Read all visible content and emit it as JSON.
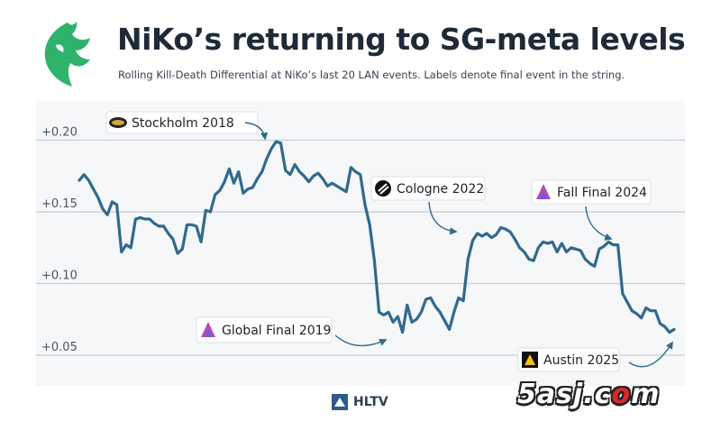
{
  "header": {
    "title": "NiKo’s returning to SG-meta levels",
    "subtitle": "Rolling Kill-Death Differential at NiKo’s last 20 LAN events. Labels denote final event in the string."
  },
  "footer": {
    "brand": "HLTV"
  },
  "watermark": {
    "text_part1": "5asj.c",
    "text_part2": "o",
    "text_part3": "m"
  },
  "colors": {
    "line": "#2f6a8f",
    "grid": "#c9cdd2",
    "title": "#1e2a38",
    "logo": "#2fb36a"
  },
  "chart_data": {
    "type": "line",
    "title": "NiKo’s returning to SG-meta levels",
    "xlabel": "",
    "ylabel": "",
    "ylim": [
      0.03,
      0.22
    ],
    "yticks": [
      0.05,
      0.1,
      0.15,
      0.2
    ],
    "ytick_labels": [
      "+0.05",
      "+0.10",
      "+0.15",
      "+0.20"
    ],
    "grid": true,
    "series": [
      {
        "name": "Rolling K-D Differential",
        "values": [
          0.172,
          0.176,
          0.172,
          0.166,
          0.16,
          0.152,
          0.148,
          0.157,
          0.155,
          0.122,
          0.127,
          0.125,
          0.145,
          0.146,
          0.145,
          0.145,
          0.142,
          0.14,
          0.14,
          0.135,
          0.131,
          0.121,
          0.124,
          0.141,
          0.141,
          0.14,
          0.129,
          0.151,
          0.15,
          0.162,
          0.165,
          0.171,
          0.18,
          0.17,
          0.178,
          0.163,
          0.166,
          0.167,
          0.173,
          0.178,
          0.187,
          0.194,
          0.199,
          0.198,
          0.179,
          0.176,
          0.183,
          0.178,
          0.175,
          0.171,
          0.175,
          0.177,
          0.173,
          0.168,
          0.17,
          0.168,
          0.166,
          0.164,
          0.181,
          0.178,
          0.176,
          0.155,
          0.141,
          0.116,
          0.08,
          0.078,
          0.08,
          0.073,
          0.077,
          0.066,
          0.085,
          0.073,
          0.075,
          0.08,
          0.089,
          0.09,
          0.084,
          0.08,
          0.074,
          0.068,
          0.08,
          0.09,
          0.088,
          0.117,
          0.13,
          0.135,
          0.133,
          0.135,
          0.132,
          0.134,
          0.139,
          0.138,
          0.136,
          0.131,
          0.125,
          0.122,
          0.117,
          0.116,
          0.125,
          0.129,
          0.128,
          0.129,
          0.122,
          0.128,
          0.122,
          0.125,
          0.124,
          0.123,
          0.117,
          0.114,
          0.112,
          0.124,
          0.126,
          0.129,
          0.127,
          0.127,
          0.093,
          0.087,
          0.081,
          0.079,
          0.076,
          0.083,
          0.081,
          0.081,
          0.072,
          0.07,
          0.066,
          0.068
        ]
      }
    ],
    "annotations": [
      {
        "label": "Stockholm 2018",
        "icon": "major-trophy-icon",
        "value": 0.199
      },
      {
        "label": "Global Final 2019",
        "icon": "blast-icon",
        "value": 0.066
      },
      {
        "label": "Cologne 2022",
        "icon": "esl-icon",
        "value": 0.133
      },
      {
        "label": "Fall Final 2024",
        "icon": "blast-icon",
        "value": 0.127
      },
      {
        "label": "Austin 2025",
        "icon": "blast-austin-icon",
        "value": 0.068
      }
    ]
  }
}
